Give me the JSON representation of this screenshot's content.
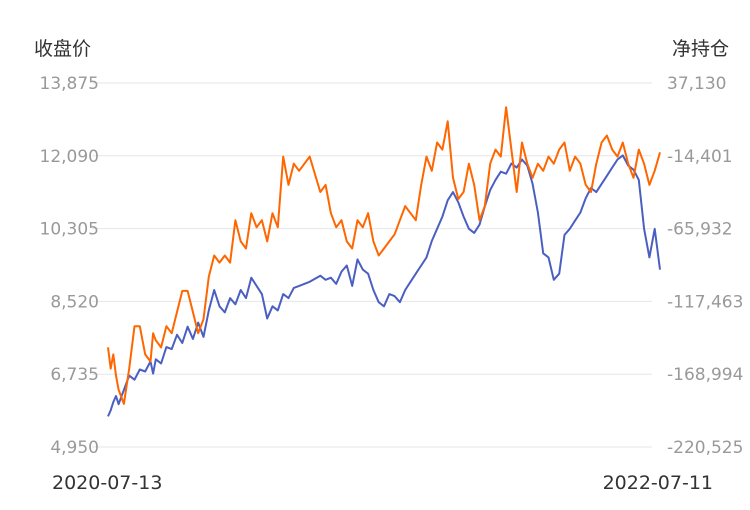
{
  "chart_data": {
    "type": "line",
    "left_axis_title": "收盘价",
    "right_axis_title": "净持仓",
    "left_ticks": [
      "13,875",
      "12,090",
      "10,305",
      "8,520",
      "6,735",
      "4,950"
    ],
    "right_ticks": [
      "37,130",
      "-14,401",
      "-65,932",
      "-117,463",
      "-168,994",
      "-220,525"
    ],
    "x_start_label": "2020-07-13",
    "x_end_label": "2022-07-11",
    "ylim_left": [
      4950,
      13875
    ],
    "ylim_right": [
      -220525,
      37130
    ],
    "grid": true,
    "colors": {
      "close": "#4a5fc1",
      "net_position": "#ff6600"
    },
    "series": [
      {
        "key": "close",
        "axis": "left",
        "x": [
          0,
          0.5,
          1,
          1.5,
          2,
          3,
          4,
          5,
          6,
          7,
          8,
          8.5,
          9,
          10,
          11,
          12,
          13,
          14,
          15,
          16,
          17,
          18,
          19,
          20,
          21,
          22,
          23,
          24,
          25,
          26,
          27,
          28,
          29,
          30,
          31,
          32,
          33,
          34,
          35,
          36,
          38,
          40,
          41,
          42,
          43,
          44,
          45,
          46,
          47,
          48,
          49,
          50,
          51,
          52,
          53,
          54,
          55,
          56,
          57,
          58,
          59,
          60,
          61,
          62,
          63,
          64,
          65,
          66,
          67,
          68,
          69,
          70,
          71,
          72,
          73,
          74,
          75,
          76,
          77,
          78,
          79,
          80,
          81,
          82,
          83,
          84,
          85,
          86,
          87,
          88,
          89,
          90,
          91,
          92,
          93,
          94,
          95,
          96,
          97,
          98,
          99,
          100,
          101,
          102,
          103,
          104
        ],
        "values": [
          5700,
          5850,
          6050,
          6200,
          6000,
          6350,
          6700,
          6600,
          6850,
          6800,
          7050,
          6750,
          7100,
          7000,
          7400,
          7350,
          7700,
          7500,
          7900,
          7600,
          8000,
          7650,
          8300,
          8800,
          8400,
          8250,
          8600,
          8450,
          8800,
          8600,
          9100,
          8900,
          8700,
          8100,
          8400,
          8300,
          8700,
          8600,
          8850,
          8900,
          9000,
          9150,
          9050,
          9100,
          8950,
          9250,
          9400,
          8900,
          9550,
          9300,
          9200,
          8800,
          8500,
          8400,
          8700,
          8650,
          8500,
          8800,
          9000,
          9200,
          9400,
          9600,
          10000,
          10300,
          10600,
          11000,
          11200,
          10950,
          10600,
          10300,
          10200,
          10400,
          10850,
          11250,
          11500,
          11700,
          11650,
          11900,
          11800,
          12000,
          11850,
          11400,
          10700,
          9700,
          9600,
          9050,
          9200,
          10150,
          10300,
          10500,
          10700,
          11050,
          11300,
          11200,
          11400,
          11600,
          11800,
          12000,
          12100,
          11850,
          11750,
          11500,
          10300,
          9600,
          10300,
          9300
        ]
      },
      {
        "key": "net_position",
        "axis": "right",
        "x": [
          0,
          0.5,
          1,
          1.5,
          2,
          3,
          4,
          5,
          6,
          7,
          8,
          8.5,
          9,
          10,
          11,
          12,
          13,
          14,
          15,
          16,
          17,
          18,
          19,
          20,
          21,
          22,
          23,
          24,
          25,
          26,
          27,
          28,
          29,
          30,
          31,
          32,
          33,
          34,
          35,
          36,
          38,
          40,
          41,
          42,
          43,
          44,
          45,
          46,
          47,
          48,
          49,
          50,
          51,
          52,
          53,
          54,
          55,
          56,
          57,
          58,
          59,
          60,
          61,
          62,
          63,
          64,
          65,
          66,
          67,
          68,
          69,
          70,
          71,
          72,
          73,
          74,
          75,
          76,
          77,
          78,
          79,
          80,
          81,
          82,
          83,
          84,
          85,
          86,
          87,
          88,
          89,
          90,
          91,
          92,
          93,
          94,
          95,
          96,
          97,
          98,
          99,
          100,
          101,
          102,
          103,
          104
        ],
        "values": [
          -150000,
          -165000,
          -155000,
          -170000,
          -180000,
          -190000,
          -165000,
          -135000,
          -135000,
          -155000,
          -160000,
          -140000,
          -145000,
          -150000,
          -135000,
          -140000,
          -125000,
          -110000,
          -110000,
          -125000,
          -140000,
          -130000,
          -100000,
          -85000,
          -90000,
          -85000,
          -90000,
          -60000,
          -75000,
          -80000,
          -55000,
          -65000,
          -60000,
          -75000,
          -55000,
          -65000,
          -15000,
          -35000,
          -20000,
          -25000,
          -15000,
          -40000,
          -35000,
          -55000,
          -65000,
          -60000,
          -75000,
          -80000,
          -60000,
          -65000,
          -55000,
          -75000,
          -85000,
          -80000,
          -75000,
          -70000,
          -60000,
          -50000,
          -55000,
          -60000,
          -35000,
          -15000,
          -25000,
          -5000,
          -10000,
          10000,
          -30000,
          -45000,
          -40000,
          -20000,
          -35000,
          -60000,
          -50000,
          -20000,
          -10000,
          -15000,
          20000,
          -10000,
          -40000,
          -5000,
          -20000,
          -30000,
          -20000,
          -25000,
          -15000,
          -20000,
          -10000,
          -5000,
          -25000,
          -15000,
          -20000,
          -35000,
          -40000,
          -20000,
          -5000,
          0,
          -10000,
          -15000,
          -5000,
          -20000,
          -30000,
          -10000,
          -20000,
          -35000,
          -25000,
          -12000
        ]
      }
    ]
  }
}
